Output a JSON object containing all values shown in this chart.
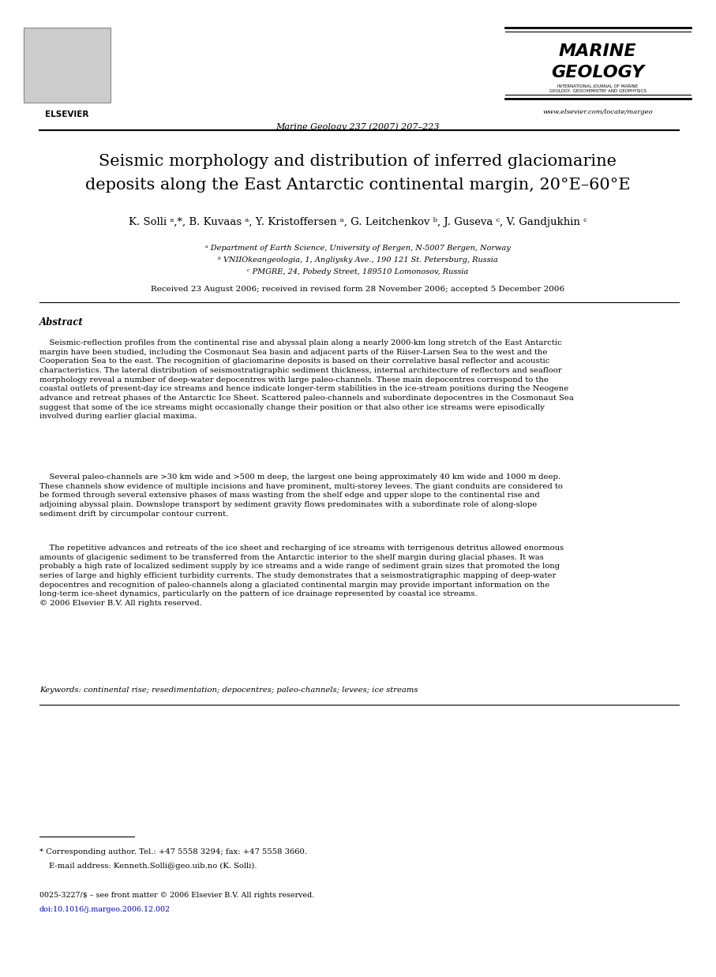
{
  "bg_color": "#ffffff",
  "title_line1": "Seismic morphology and distribution of inferred glaciomarine",
  "title_line2": "deposits along the East Antarctic continental margin, 20°E–60°E",
  "authors": "K. Solli ᵃ,*, B. Kuvaas ᵃ, Y. Kristoffersen ᵃ, G. Leitchenkov ᵇ, J. Guseva ᶜ, V. Gandjukhin ᶜ",
  "affil_a": "ᵃ Department of Earth Science, University of Bergen, N-5007 Bergen, Norway",
  "affil_b": "ᵇ VNIIOkeangeologia, 1, Angliysky Ave., 190 121 St. Petersburg, Russia",
  "affil_c": "ᶜ PMGRE, 24, Pobedy Street, 189510 Lomonosov, Russia",
  "received": "Received 23 August 2006; received in revised form 28 November 2006; accepted 5 December 2006",
  "journal_center": "Marine Geology 237 (2007) 207–223",
  "journal_name_line1": "MARINE",
  "journal_name_line2": "GEOLOGY",
  "journal_url": "www.elsevier.com/locate/margeo",
  "abstract_title": "Abstract",
  "abstract_p1": "    Seismic-reflection profiles from the continental rise and abyssal plain along a nearly 2000-km long stretch of the East Antarctic\nmargin have been studied, including the Cosmonaut Sea basin and adjacent parts of the Riiser-Larsen Sea to the west and the\nCooperation Sea to the east. The recognition of glaciomarine deposits is based on their correlative basal reflector and acoustic\ncharacteristics. The lateral distribution of seismostratigraphic sediment thickness, internal architecture of reflectors and seafloor\nmorphology reveal a number of deep-water depocentres with large paleo-channels. These main depocentres correspond to the\ncoastal outlets of present-day ice streams and hence indicate longer-term stabilities in the ice-stream positions during the Neogene\nadvance and retreat phases of the Antarctic Ice Sheet. Scattered paleo-channels and subordinate depocentres in the Cosmonaut Sea\nsuggest that some of the ice streams might occasionally change their position or that also other ice streams were episodically\ninvolved during earlier glacial maxima.",
  "abstract_p2": "    Several paleo-channels are >30 km wide and >500 m deep, the largest one being approximately 40 km wide and 1000 m deep.\nThese channels show evidence of multiple incisions and have prominent, multi-storey levees. The giant conduits are considered to\nbe formed through several extensive phases of mass wasting from the shelf edge and upper slope to the continental rise and\nadjoining abyssal plain. Downslope transport by sediment gravity flows predominates with a subordinate role of along-slope\nsediment drift by circumpolar contour current.",
  "abstract_p3": "    The repetitive advances and retreats of the ice sheet and recharging of ice streams with terrigenous detritus allowed enormous\namounts of glacigenic sediment to be transferred from the Antarctic interior to the shelf margin during glacial phases. It was\nprobably a high rate of localized sediment supply by ice streams and a wide range of sediment grain sizes that promoted the long\nseries of large and highly efficient turbidity currents. The study demonstrates that a seismostratigraphic mapping of deep-water\ndepocentres and recognition of paleo-channels along a glaciated continental margin may provide important information on the\nlong-term ice-sheet dynamics, particularly on the pattern of ice drainage represented by coastal ice streams.\n© 2006 Elsevier B.V. All rights reserved.",
  "keywords": "Keywords: continental rise; resedimentation; depocentres; paleo-channels; levees; ice streams",
  "footnote_star": "* Corresponding author. Tel.: +47 5558 3294; fax: +47 5558 3660.",
  "footnote_email": "E-mail address: Kenneth.Solli@geo.uib.no (K. Solli).",
  "issn": "0025-3227/$ – see front matter © 2006 Elsevier B.V. All rights reserved.",
  "doi": "doi:10.1016/j.margeo.2006.12.002"
}
